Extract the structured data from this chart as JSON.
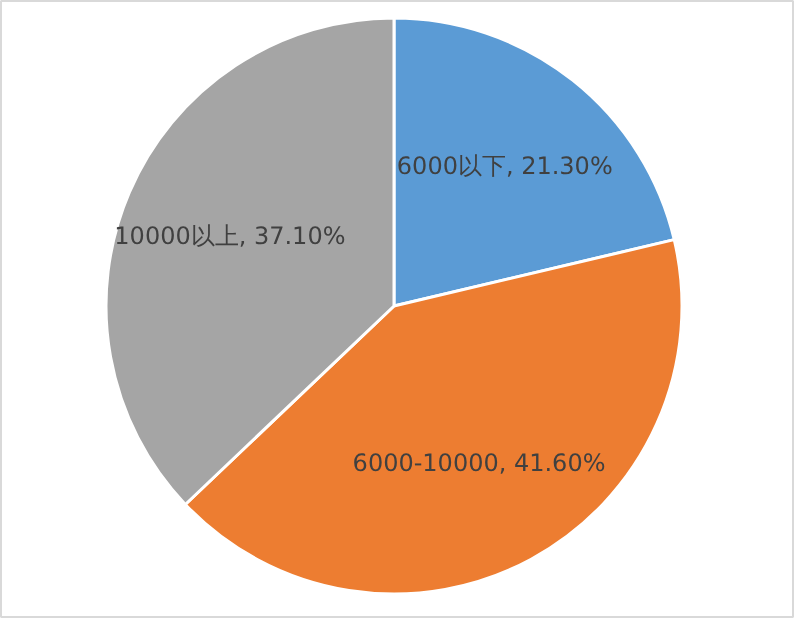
{
  "chart_data": {
    "type": "pie",
    "categories": [
      "6000以下",
      "6000-10000",
      "10000以上"
    ],
    "values": [
      21.3,
      41.6,
      37.1
    ],
    "value_labels": [
      "21.30%",
      "41.60%",
      "37.10%"
    ],
    "colors": [
      "#5b9bd5",
      "#ed7d31",
      "#a5a5a5"
    ]
  }
}
